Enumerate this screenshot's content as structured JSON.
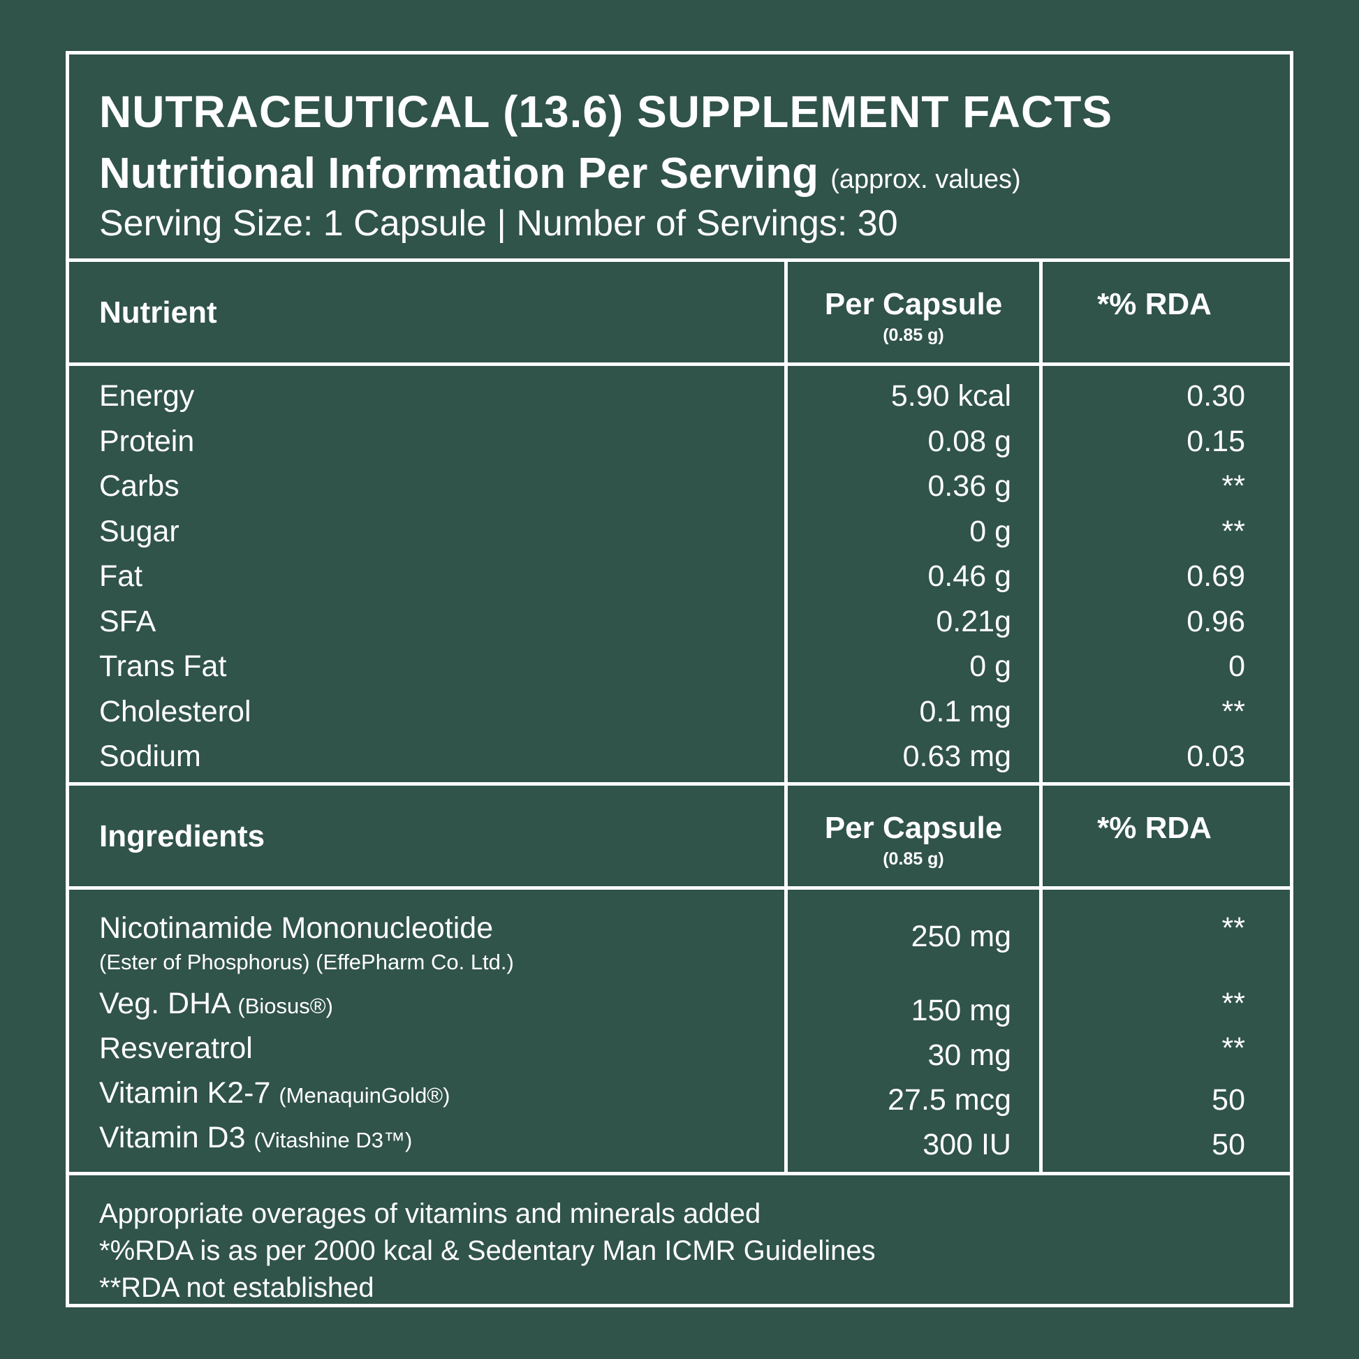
{
  "colors": {
    "background": "#30534a",
    "foreground": "#ffffff"
  },
  "header": {
    "title": "NUTRACEUTICAL (13.6) SUPPLEMENT FACTS",
    "subtitle": "Nutritional Information Per Serving",
    "subtitle_note": "(approx. values)",
    "serving": "Serving Size: 1 Capsule | Number of Servings: 30"
  },
  "nutrients": {
    "headers": {
      "name": "Nutrient",
      "per": "Per Capsule",
      "per_sub": "(0.85 g)",
      "rda": "*% RDA"
    },
    "rows": [
      {
        "name": "Energy",
        "per": "5.90 kcal",
        "rda": "0.30"
      },
      {
        "name": "Protein",
        "per": "0.08 g",
        "rda": "0.15"
      },
      {
        "name": "Carbs",
        "per": "0.36 g",
        "rda": "**"
      },
      {
        "name": "Sugar",
        "per": "0 g",
        "rda": "**"
      },
      {
        "name": "Fat",
        "per": "0.46 g",
        "rda": "0.69"
      },
      {
        "name": "SFA",
        "per": "0.21g",
        "rda": "0.96"
      },
      {
        "name": "Trans Fat",
        "per": "0 g",
        "rda": "0"
      },
      {
        "name": "Cholesterol",
        "per": "0.1 mg",
        "rda": "**"
      },
      {
        "name": "Sodium",
        "per": "0.63 mg",
        "rda": "0.03"
      }
    ]
  },
  "ingredients": {
    "headers": {
      "name": "Ingredients",
      "per": "Per Capsule",
      "per_sub": "(0.85 g)",
      "rda": "*% RDA"
    },
    "rows": [
      {
        "name": "Nicotinamide Mononucleotide",
        "note": "(Ester of Phosphorus) (EffePharm Co. Ltd.)",
        "per": "250 mg",
        "rda": "**"
      },
      {
        "name": "Veg. DHA",
        "note": "(Biosus®)",
        "per": "150 mg",
        "rda": "**"
      },
      {
        "name": "Resveratrol",
        "note": "",
        "per": "30 mg",
        "rda": "**"
      },
      {
        "name": "Vitamin K2-7",
        "note": "(MenaquinGold®)",
        "per": "27.5 mcg",
        "rda": "50"
      },
      {
        "name": "Vitamin D3",
        "note": "(Vitashine D3™)",
        "per": "300 IU",
        "rda": "50"
      }
    ]
  },
  "footer": {
    "lines": [
      "Appropriate overages of vitamins and minerals added",
      "*%RDA is as per 2000 kcal & Sedentary Man ICMR Guidelines",
      "**RDA not established"
    ]
  }
}
